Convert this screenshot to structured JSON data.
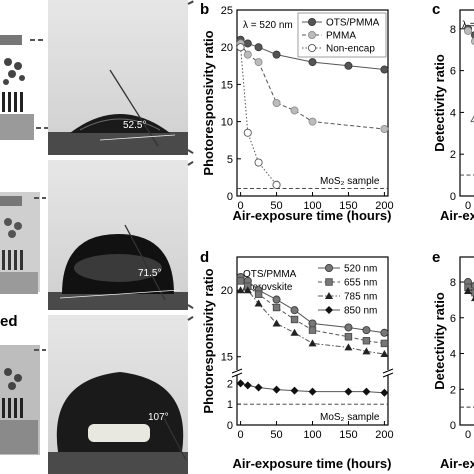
{
  "photos": [
    {
      "angle_label": "52.5°"
    },
    {
      "angle_label": "71.5°"
    },
    {
      "angle_label": "107°"
    }
  ],
  "side_text": "ed",
  "panels": {
    "b": {
      "label": "b",
      "annotation": "λ = 520 nm",
      "ref_label": "MoS₂ sample"
    },
    "c": {
      "label": "c",
      "annotation": "λ ="
    },
    "d": {
      "label": "d",
      "stack_label_1": "OTS/PMMA",
      "stack_label_2": "/Perovskite",
      "ref_label": "MoS₂ sample"
    },
    "e": {
      "label": "e"
    }
  },
  "chart_data": [
    {
      "id": "b",
      "type": "line",
      "xlabel": "Air-exposure time (hours)",
      "ylabel": "Photoresponsivity ratio",
      "xlim": [
        -5,
        205
      ],
      "ylim": [
        0,
        25
      ],
      "xticks": [
        "0",
        "50",
        "100",
        "150",
        "200"
      ],
      "yticks": [
        "0",
        "5",
        "10",
        "15",
        "20",
        "25"
      ],
      "reference_line": 1,
      "series": [
        {
          "name": "OTS/PMMA",
          "marker": "circle-filled",
          "line": "solid",
          "x": [
            0,
            10,
            25,
            50,
            100,
            150,
            200
          ],
          "y": [
            21,
            20.5,
            20,
            19,
            18,
            17.5,
            17
          ]
        },
        {
          "name": "PMMA",
          "marker": "circle-gray",
          "line": "dashed",
          "x": [
            0,
            10,
            25,
            50,
            75,
            100,
            200
          ],
          "y": [
            20.5,
            19,
            18,
            12.5,
            11.5,
            10,
            9
          ]
        },
        {
          "name": "Non-encap",
          "marker": "circle-open",
          "line": "dotted",
          "x": [
            0,
            10,
            25,
            50
          ],
          "y": [
            20,
            8.5,
            4.5,
            1.5
          ]
        }
      ]
    },
    {
      "id": "c",
      "type": "line",
      "xlabel": "Air-ex",
      "ylabel": "Detectivity ratio",
      "yticks": [
        "0",
        "2",
        "4",
        "6",
        "8"
      ],
      "ylim": [
        0,
        8.9
      ],
      "xticks": [
        "0"
      ],
      "partial": true,
      "series_points": {
        "filled": [
          [
            0,
            8
          ],
          [
            10,
            7.7
          ]
        ],
        "gray": [
          [
            0,
            7.9
          ],
          [
            10,
            7.4
          ]
        ],
        "triangle": [
          [
            10,
            3.7
          ],
          [
            20,
            1.2
          ]
        ]
      },
      "reference_line": 1
    },
    {
      "id": "d",
      "type": "line",
      "xlabel": "Air-exposure time (hours)",
      "ylabel": "Photoresponsivity ratio",
      "xlim": [
        -5,
        205
      ],
      "xticks": [
        "0",
        "50",
        "100",
        "150",
        "200"
      ],
      "yticks": [
        "0",
        "1",
        "2",
        "15",
        "20"
      ],
      "y_broken_axis": {
        "lower": [
          0,
          2.4
        ],
        "upper": [
          14,
          22.5
        ]
      },
      "reference_line": 1,
      "series": [
        {
          "name": "520 nm",
          "marker": "circle",
          "line": "solid",
          "x": [
            0,
            10,
            25,
            50,
            75,
            100,
            150,
            175,
            200
          ],
          "y": [
            21,
            20.7,
            20,
            19.3,
            18.5,
            17.5,
            17.2,
            17,
            16.8
          ]
        },
        {
          "name": "655 nm",
          "marker": "square",
          "line": "dashed",
          "x": [
            0,
            10,
            25,
            50,
            75,
            100,
            150,
            175,
            200
          ],
          "y": [
            20.7,
            20.3,
            19.7,
            18.7,
            17.8,
            17,
            16.5,
            16.2,
            16
          ]
        },
        {
          "name": "785 nm",
          "marker": "triangle",
          "line": "dashdot",
          "x": [
            0,
            10,
            25,
            50,
            75,
            100,
            150,
            175,
            200
          ],
          "y": [
            20,
            20,
            19,
            17.5,
            16.8,
            16,
            15.7,
            15.4,
            15.2
          ]
        },
        {
          "name": "850 nm",
          "marker": "diamond",
          "line": "solid",
          "x": [
            0,
            10,
            25,
            50,
            75,
            100,
            150,
            175,
            200
          ],
          "y": [
            2,
            1.9,
            1.8,
            1.7,
            1.65,
            1.6,
            1.6,
            1.6,
            1.55
          ]
        }
      ]
    },
    {
      "id": "e",
      "type": "line",
      "xlabel": "Air-ex",
      "ylabel": "Detectivity ratio",
      "yticks": [
        "0",
        "2",
        "4",
        "6",
        "8"
      ],
      "ylim": [
        0,
        9.4
      ],
      "xticks": [
        "0"
      ],
      "partial": true,
      "series_points": {
        "circle": [
          [
            0,
            8
          ],
          [
            10,
            7.8
          ]
        ],
        "square": [
          [
            0,
            7.7
          ],
          [
            10,
            7.4
          ]
        ],
        "triangle": [
          [
            0,
            7.5
          ],
          [
            10,
            7.1
          ]
        ]
      },
      "reference_line": 1
    }
  ]
}
